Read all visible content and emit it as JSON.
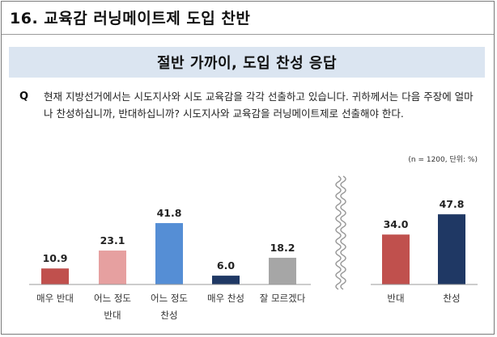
{
  "page": {
    "title": "16. 교육감 러닝메이트제 도입 찬반",
    "banner": "절반 가까이, 도입 찬성 응답"
  },
  "question": {
    "mark": "Q",
    "text": "현재 지방선거에서는 시도지사와 시도 교육감을 각각 선출하고 있습니다. 귀하께서는 다음 주장에 얼마나 찬성하십니까, 반대하십니까? 시도지사와 교육감을 러닝메이트제로 선출해야 한다."
  },
  "note": "(n = 1200, 단위: %)",
  "chart_data": [
    {
      "type": "bar",
      "categories": [
        "매우 반대",
        "어느 정도\n반대",
        "어느 정도\n찬성",
        "매우 찬성",
        "잘 모르겠다"
      ],
      "values": [
        10.9,
        23.1,
        41.8,
        6.0,
        18.2
      ],
      "colors": [
        "#c0504d",
        "#e6a0a0",
        "#558ed5",
        "#1f3864",
        "#a6a6a6"
      ],
      "value_labels": [
        "10.9",
        "23.1",
        "41.8",
        "6.0",
        "18.2"
      ],
      "ylim": [
        0,
        55
      ]
    },
    {
      "type": "bar",
      "categories": [
        "반대",
        "찬성"
      ],
      "values": [
        34.0,
        47.8
      ],
      "colors": [
        "#c0504d",
        "#1f3864"
      ],
      "value_labels": [
        "34.0",
        "47.8"
      ],
      "ylim": [
        0,
        55
      ]
    }
  ]
}
